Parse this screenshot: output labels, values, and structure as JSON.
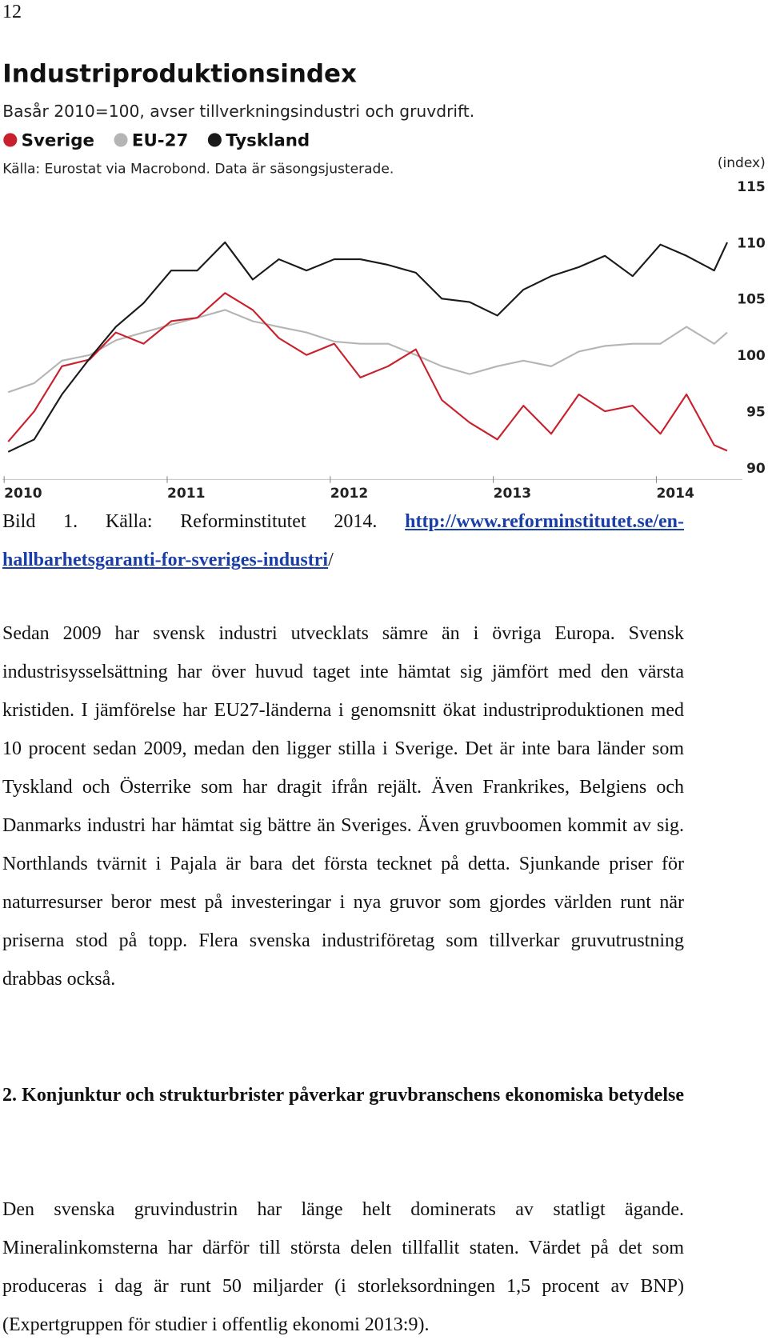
{
  "page_number": "12",
  "chart_data": {
    "type": "line",
    "title": "Industriproduktionsindex",
    "subtitle": "Basår 2010=100, avser tillverkningsindustri och gruvdrift.",
    "source": "Källa: Eurostat via Macrobond. Data är säsongsjusterade.",
    "y_label": "(index)",
    "x": [
      2009.92,
      2010.08,
      2010.25,
      2010.42,
      2010.58,
      2010.75,
      2010.92,
      2011.08,
      2011.25,
      2011.42,
      2011.58,
      2011.75,
      2011.92,
      2012.08,
      2012.25,
      2012.42,
      2012.58,
      2012.75,
      2012.92,
      2013.08,
      2013.25,
      2013.42,
      2013.58,
      2013.75,
      2013.92,
      2014.08,
      2014.25,
      2014.33
    ],
    "series": [
      {
        "name": "Sverige",
        "color": "#c8202c",
        "values": [
          92.3,
          95,
          99,
          99.6,
          102,
          101,
          103,
          103.3,
          105.5,
          104,
          101.5,
          100,
          101,
          98,
          99,
          100.5,
          96,
          94,
          92.5,
          95.5,
          93,
          96.5,
          95,
          95.5,
          93,
          96.5,
          92,
          91.5
        ]
      },
      {
        "name": "EU-27",
        "color": "#b5b5b5",
        "values": [
          96.7,
          97.5,
          99.5,
          100,
          101.3,
          102,
          102.7,
          103.3,
          104,
          103,
          102.5,
          102,
          101.2,
          101,
          101,
          100,
          99,
          98.3,
          99,
          99.5,
          99,
          100.3,
          100.8,
          101,
          101,
          102.5,
          101,
          102
        ]
      },
      {
        "name": "Tyskland",
        "color": "#1a1a1a",
        "values": [
          91.4,
          92.5,
          96.5,
          99.7,
          102.5,
          104.6,
          107.5,
          107.5,
          110,
          106.7,
          108.5,
          107.5,
          108.5,
          108.5,
          108,
          107.3,
          105,
          104.7,
          103.5,
          105.8,
          107,
          107.8,
          108.8,
          107,
          109.8,
          108.8,
          107.5,
          110
        ]
      }
    ],
    "xlim": [
      2009.87,
      2014.58
    ],
    "xticks": [
      2010,
      2011,
      2012,
      2013,
      2014
    ],
    "ylim": [
      90,
      115
    ],
    "yticks": [
      90,
      95,
      100,
      105,
      110,
      115
    ],
    "grid": false
  },
  "caption": {
    "prefix": "Bild 1. Källa: Reforminstitutet 2014.",
    "link": "http://www.reforminstitutet.se/en-hallbarhetsgaranti-for-sveriges-industri",
    "suffix": "/"
  },
  "paragraphs": [
    "Sedan 2009 har svensk industri utvecklats sämre än i övriga Europa. Svensk industrisysselsättning har över huvud taget inte hämtat sig jämfört med den värsta kristiden. I jämförelse har EU27-länderna i genomsnitt ökat industriproduktionen med 10 procent sedan 2009, medan den ligger stilla i Sverige. Det är inte bara länder som Tyskland och Österrike som har dragit ifrån rejält. Även Frankrikes, Belgiens och Danmarks industri har hämtat sig bättre än Sveriges. Även gruvboomen kommit av sig. Northlands tvärnit i Pajala är bara det första tecknet på detta. Sjunkande priser för naturresurser beror mest på investeringar i nya gruvor som gjordes världen runt när priserna stod på topp. Flera svenska industriföretag som tillverkar gruvutrustning drabbas också."
  ],
  "heading": "2. Konjunktur och strukturbrister påverkar gruvbranschens ekonomiska betydelse",
  "paragraph2": "Den svenska gruvindustrin har länge helt dominerats av statligt ägande. Mineralinkomsterna har därför till största delen tillfallit staten. Värdet på det som produceras i dag är runt 50 miljarder (i storleksordningen 1,5 procent av BNP) (Expertgruppen för studier i offentlig ekonomi 2013:9)."
}
